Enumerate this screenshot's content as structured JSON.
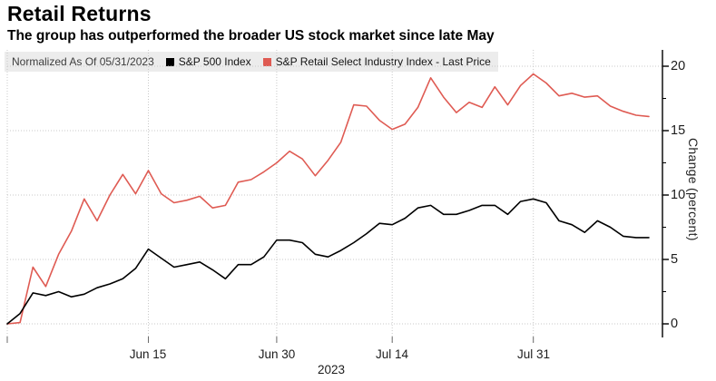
{
  "header": {
    "title": "Retail Returns",
    "subtitle": "The group has outperformed the broader US stock market since late May"
  },
  "legend": {
    "note": "Normalized As Of 05/31/2023",
    "series": [
      {
        "label": "S&P 500 Index",
        "color": "#000000"
      },
      {
        "label": "S&P Retail Select Industry Index - Last Price",
        "color": "#df5b53"
      }
    ]
  },
  "chart_data": {
    "type": "line",
    "title": "Retail Returns",
    "x_unit": "daily trading sessions starting 05/31/2023",
    "x_axis": {
      "year_label": "2023",
      "tick_labels": [
        "Jun 15",
        "Jun 30",
        "Jul 14",
        "Jul 31"
      ],
      "tick_sessions": [
        11,
        21,
        30,
        41
      ]
    },
    "y_axis": {
      "label": "Change (percent)",
      "ticks": [
        0,
        5,
        10,
        15,
        20
      ],
      "minor_tick_step": 2.5,
      "range": [
        -1,
        21.3
      ],
      "grid": true
    },
    "legend_position": "top",
    "series": [
      {
        "name": "S&P 500 Index",
        "color": "#000000",
        "values": [
          0,
          0.8,
          2.4,
          2.2,
          2.5,
          2.1,
          2.3,
          2.8,
          3.1,
          3.5,
          4.3,
          5.8,
          5.1,
          4.4,
          4.6,
          4.8,
          4.2,
          3.5,
          4.6,
          4.6,
          5.2,
          6.5,
          6.5,
          6.3,
          5.4,
          5.2,
          5.7,
          6.3,
          7.0,
          7.8,
          7.7,
          8.2,
          9.0,
          9.2,
          8.5,
          8.5,
          8.8,
          9.2,
          9.2,
          8.5,
          9.5,
          9.7,
          9.4,
          8.0,
          7.7,
          7.1,
          8.0,
          7.5,
          6.8,
          6.7,
          6.7
        ]
      },
      {
        "name": "S&P Retail Select Industry Index - Last Price",
        "color": "#df5b53",
        "values": [
          0,
          0.1,
          4.4,
          2.9,
          5.4,
          7.2,
          9.7,
          8.0,
          10.0,
          11.6,
          10.1,
          11.9,
          10.1,
          9.4,
          9.6,
          9.9,
          9.0,
          9.2,
          11.0,
          11.2,
          11.8,
          12.5,
          13.4,
          12.8,
          11.5,
          12.7,
          14.1,
          17.0,
          16.9,
          15.8,
          15.1,
          15.5,
          16.8,
          19.1,
          17.6,
          16.4,
          17.2,
          16.8,
          18.4,
          17.0,
          18.5,
          19.4,
          18.7,
          17.7,
          17.9,
          17.6,
          17.7,
          16.9,
          16.5,
          16.2,
          16.1
        ]
      }
    ]
  }
}
